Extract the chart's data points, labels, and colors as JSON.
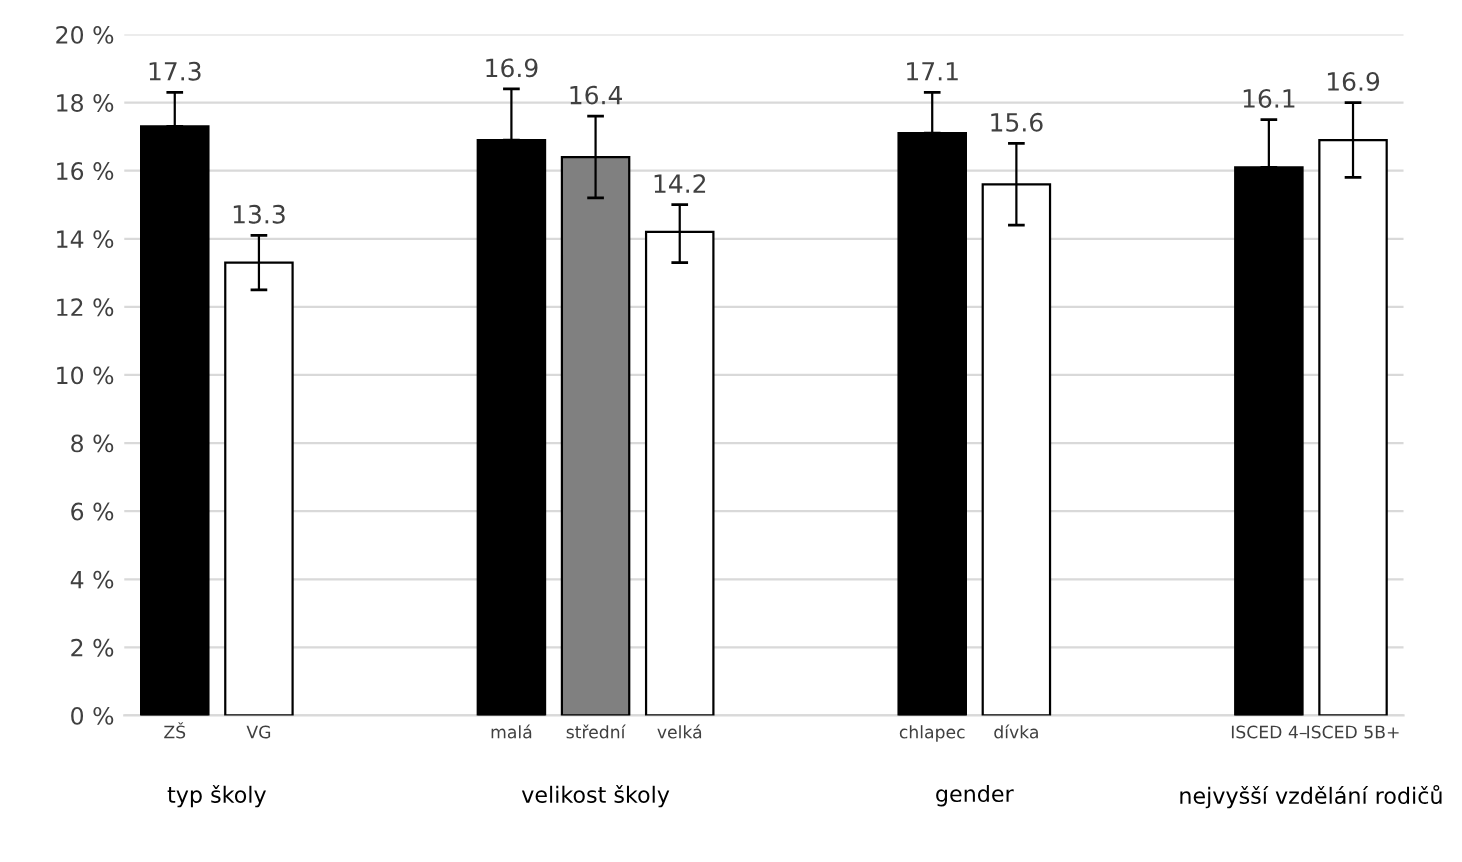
{
  "chart_data": {
    "type": "bar",
    "categories": [
      "ZŠ",
      "VG",
      null,
      null,
      "malá",
      "střední",
      "velká",
      null,
      null,
      "chlapec",
      "dívka",
      null,
      null,
      "ISCED 4–",
      "ISCED 5B+"
    ],
    "values": [
      17.3,
      13.3,
      null,
      null,
      16.9,
      16.4,
      14.2,
      null,
      null,
      17.1,
      15.6,
      null,
      null,
      16.1,
      16.9
    ],
    "colors": [
      "#000000",
      "#ffffff",
      null,
      null,
      "#000000",
      "#808080",
      "#ffffff",
      null,
      null,
      "#000000",
      "#ffffff",
      null,
      null,
      "#000000",
      "#ffffff"
    ],
    "errors": [
      [
        17.3,
        18.3
      ],
      [
        12.5,
        14.1
      ],
      null,
      null,
      [
        16.9,
        18.4
      ],
      [
        15.2,
        17.6
      ],
      [
        13.3,
        15.0
      ],
      null,
      null,
      [
        17.1,
        18.3
      ],
      [
        14.4,
        16.8
      ],
      null,
      null,
      [
        16.1,
        17.5
      ],
      [
        15.8,
        18.0
      ]
    ],
    "data_labels": true,
    "annotations": [
      "typ školy",
      "velikost školy",
      "gender",
      "nejvyšší vzdělání rodičů"
    ],
    "ylim": [
      0,
      20
    ],
    "yticks": [
      {
        "value": 0,
        "label": "0 %"
      },
      {
        "value": 2,
        "label": "2 %"
      },
      {
        "value": 4,
        "label": "4 %"
      },
      {
        "value": 6,
        "label": "6 %"
      },
      {
        "value": 8,
        "label": "8 %"
      },
      {
        "value": 10,
        "label": "10 %"
      },
      {
        "value": 12,
        "label": "12 %"
      },
      {
        "value": 14,
        "label": "14 %"
      },
      {
        "value": 16,
        "label": "16 %"
      },
      {
        "value": 18,
        "label": "18 %"
      },
      {
        "value": 20,
        "label": "20 %"
      }
    ],
    "grid": "y"
  }
}
